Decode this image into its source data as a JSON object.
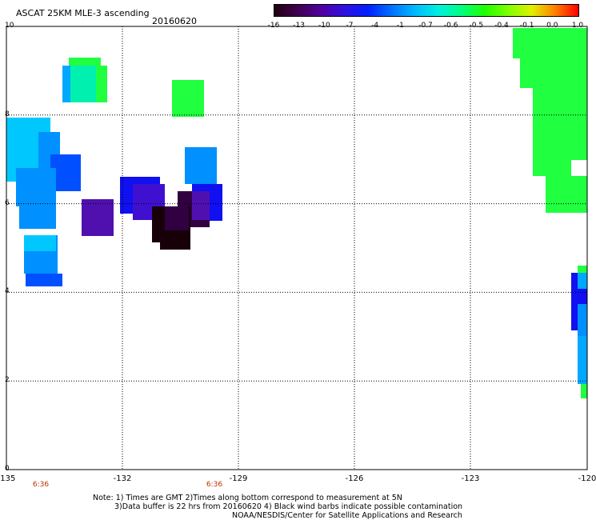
{
  "header": {
    "title": "ASCAT 25KM MLE-3 ascending",
    "date": "20160620"
  },
  "colorbar": {
    "labels": [
      "-16",
      "-13",
      "-10",
      "-7",
      "-4",
      "-1",
      "-0.7",
      "-0.6",
      "-0.5",
      "-0.4",
      "-0.1",
      "0.0",
      "1.0"
    ],
    "colors": [
      "#200010",
      "#400050",
      "#5000a0",
      "#3010e0",
      "#0020ff",
      "#0070ff",
      "#00b8ff",
      "#00f0e0",
      "#00ff80",
      "#20ff00",
      "#80ff00",
      "#e0f000",
      "#ff8000",
      "#ff0000"
    ]
  },
  "axes": {
    "y_ticks": [
      "10",
      "8",
      "6",
      "4",
      "2",
      "0"
    ],
    "x_ticks": [
      "-135",
      "-132",
      "-129",
      "-126",
      "-123",
      "-120"
    ]
  },
  "times": [
    "6:36",
    "6:36"
  ],
  "cell_colors": {
    "green": "#20ff40",
    "teal": "#00f0b0",
    "cyan_light": "#00c8ff",
    "cyan": "#00a8ff",
    "lightblue": "#0090ff",
    "blue": "#0050ff",
    "deepblue": "#1010f0",
    "indigo": "#4010d0",
    "purple": "#5010b0",
    "darkpurple": "#300040",
    "black_purple": "#180008"
  },
  "notes": {
    "line1": "Note: 1) Times are GMT 2)Times along bottom correspond to measurement at 5N",
    "line2": "3)Data buffer is 22 hrs from 20160620 4) Black wind barbs indicate possible contamination",
    "line3": "NOAA/NESDIS/Center for Satellite Applications and Research"
  }
}
